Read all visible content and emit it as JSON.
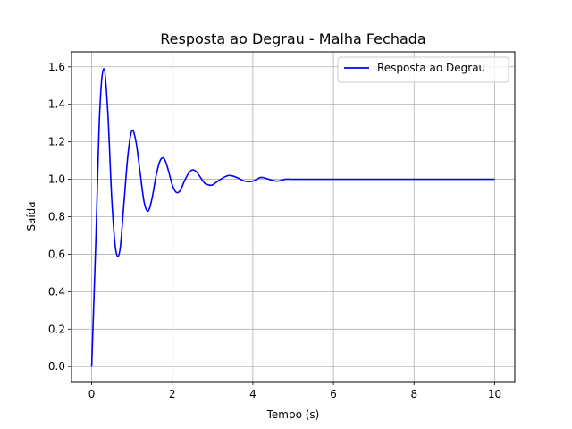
{
  "chart_data": {
    "type": "line",
    "title": "Resposta ao Degrau - Malha Fechada",
    "xlabel": "Tempo (s)",
    "ylabel": "Saída",
    "xlim": [
      -0.5,
      10.5
    ],
    "ylim": [
      -0.08,
      1.68
    ],
    "xticks": [
      0,
      2,
      4,
      6,
      8,
      10
    ],
    "xtick_labels": [
      "0",
      "2",
      "4",
      "6",
      "8",
      "10"
    ],
    "yticks": [
      0.0,
      0.2,
      0.4,
      0.6,
      0.8,
      1.0,
      1.2,
      1.4,
      1.6
    ],
    "ytick_labels": [
      "0.0",
      "0.2",
      "0.4",
      "0.6",
      "0.8",
      "1.0",
      "1.2",
      "1.4",
      "1.6"
    ],
    "grid": true,
    "legend": {
      "placement": "top-right",
      "entries": [
        "Resposta ao Degrau"
      ]
    },
    "series": [
      {
        "name": "Resposta ao Degrau",
        "color": "#0000ff",
        "x": [
          0,
          0.1,
          0.2,
          0.3,
          0.4,
          0.5,
          0.6,
          0.7,
          0.8,
          0.9,
          1.0,
          1.1,
          1.2,
          1.3,
          1.4,
          1.5,
          1.6,
          1.7,
          1.8,
          1.9,
          2.0,
          2.1,
          2.2,
          2.3,
          2.4,
          2.5,
          2.6,
          2.7,
          2.8,
          2.9,
          3.0,
          3.2,
          3.4,
          3.6,
          3.8,
          4.0,
          4.2,
          4.4,
          4.6,
          4.8,
          5.0,
          5.3,
          5.6,
          6.0,
          6.5,
          7.0,
          8.0,
          9.0,
          10.0
        ],
        "y": [
          0.0,
          0.65,
          1.36,
          1.59,
          1.36,
          0.89,
          0.62,
          0.62,
          0.87,
          1.13,
          1.26,
          1.2,
          1.04,
          0.88,
          0.83,
          0.9,
          1.02,
          1.1,
          1.11,
          1.05,
          0.97,
          0.93,
          0.94,
          0.99,
          1.03,
          1.05,
          1.04,
          1.01,
          0.98,
          0.97,
          0.97,
          1.0,
          1.02,
          1.01,
          0.99,
          0.99,
          1.01,
          1.0,
          0.99,
          1.0,
          1.0,
          1.0,
          1.0,
          1.0,
          1.0,
          1.0,
          1.0,
          1.0,
          1.0
        ]
      }
    ]
  }
}
